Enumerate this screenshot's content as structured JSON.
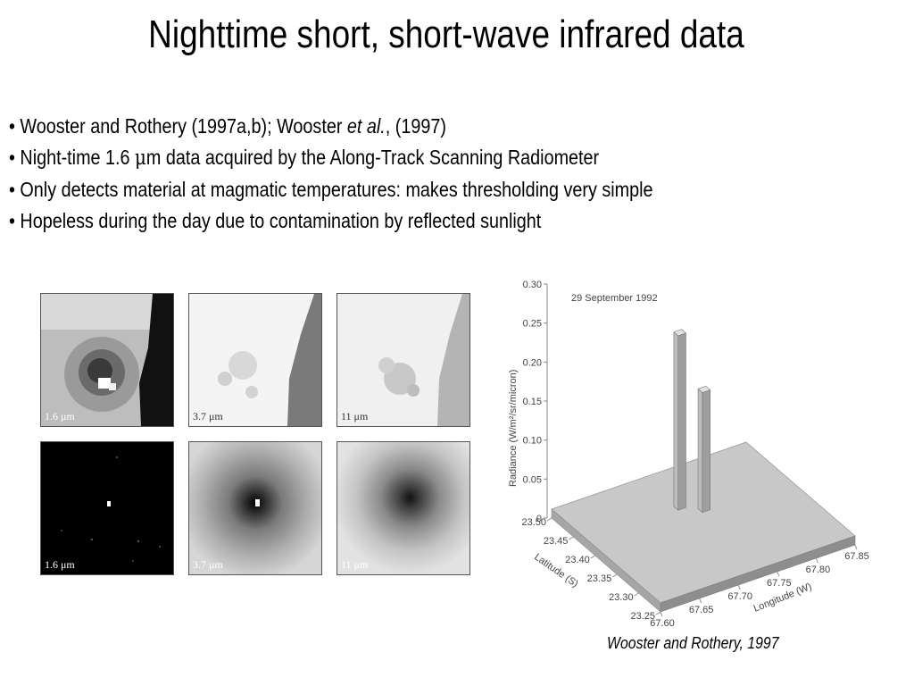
{
  "title": "Nighttime short, short-wave infrared data",
  "bullets": [
    {
      "prefix": "• Wooster and Rothery (1997a,b); Wooster ",
      "italic": "et al.",
      "suffix": ", (1997)"
    },
    {
      "prefix": "• Night-time 1.6 ",
      "unit": "μ",
      "suffix": "m data acquired by the Along-Track Scanning Radiometer"
    },
    {
      "text": "• Only detects material at magmatic temperatures: makes thresholding very simple"
    },
    {
      "text": "• Hopeless during the day due to contamination by reflected sunlight"
    }
  ],
  "panels": {
    "top": [
      "1.6 μm",
      "3.7 μm",
      "11 μm"
    ],
    "bottom": [
      "1.6 μm",
      "3.7 μm",
      "11 μm"
    ]
  },
  "chart_data": {
    "type": "bar3d",
    "title": "29 September 1992",
    "ylabel": "Radiance (W/m²/sr/micron)",
    "y_ticks": [
      "0",
      "0.05",
      "0.10",
      "0.15",
      "0.20",
      "0.25",
      "0.30"
    ],
    "ylim": [
      0,
      0.3
    ],
    "latitude_label": "Latitude (S)",
    "latitude_ticks": [
      "23.50",
      "23.45",
      "23.40",
      "23.35",
      "23.30",
      "23.25"
    ],
    "longitude_label": "Longitude (W)",
    "longitude_ticks": [
      "67.60",
      "67.65",
      "67.70",
      "67.75",
      "67.80",
      "67.85"
    ],
    "peaks": [
      {
        "latitude": 23.42,
        "longitude": 67.72,
        "value": 0.235
      },
      {
        "latitude": 23.4,
        "longitude": 67.74,
        "value": 0.165
      }
    ],
    "background_level": 0.005
  },
  "citation": "Wooster and Rothery, 1997"
}
